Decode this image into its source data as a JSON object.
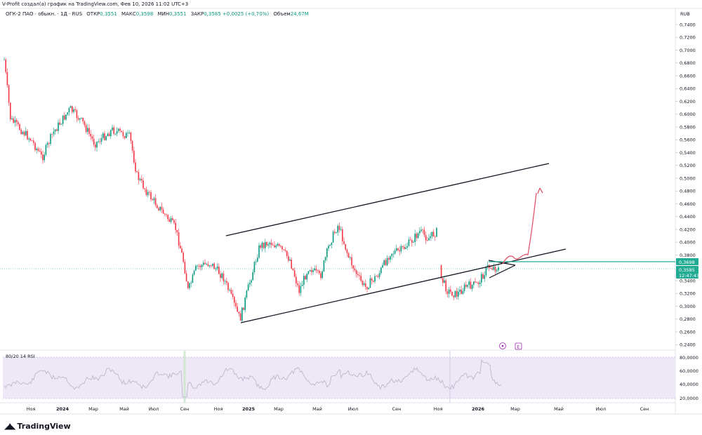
{
  "header": {
    "attribution": "V-Profit создал(а) график на TradingView.com, Фев 10, 2026 11:02 UTC+3"
  },
  "legend": {
    "symbol": "ОГК-2 ПАО · обыкн. · 1Д · RUS",
    "open_label": "ОТКР",
    "open_value": "0,3551",
    "high_label": "МАКС",
    "high_value": "0,3598",
    "low_label": "МИН",
    "low_value": "0,3551",
    "close_label": "ЗАКР",
    "close_value": "0,3585",
    "change": "+0,0025 (+0,70%)",
    "volume_label": "Объем",
    "volume_value": "24,67M"
  },
  "price_axis": {
    "currency": "RUB",
    "ticks": [
      "0,7400",
      "0,7200",
      "0,7000",
      "0,6800",
      "0,6600",
      "0,6400",
      "0,6200",
      "0,6000",
      "0,5800",
      "0,5600",
      "0,5400",
      "0,5200",
      "0,5000",
      "0,4800",
      "0,4600",
      "0,4400",
      "0,4200",
      "0,4000",
      "0,3800",
      "0,3400",
      "0,3200",
      "0,3000",
      "0,2800",
      "0,2600",
      "0,2400"
    ],
    "tag_level": "0,3698",
    "tag_price": "0,3585",
    "tag_timer": "12:47:43"
  },
  "time_axis": {
    "labels": [
      {
        "text": "Ноя",
        "bold": false
      },
      {
        "text": "2024",
        "bold": true
      },
      {
        "text": "Мар",
        "bold": false
      },
      {
        "text": "Май",
        "bold": false
      },
      {
        "text": "Июл",
        "bold": false
      },
      {
        "text": "Сен",
        "bold": false
      },
      {
        "text": "Ноя",
        "bold": false
      },
      {
        "text": "2025",
        "bold": true
      },
      {
        "text": "Мар",
        "bold": false
      },
      {
        "text": "Май",
        "bold": false
      },
      {
        "text": "Июл",
        "bold": false
      },
      {
        "text": "Сен",
        "bold": false
      },
      {
        "text": "Ноя",
        "bold": false
      },
      {
        "text": "2026",
        "bold": true
      },
      {
        "text": "Мар",
        "bold": false
      },
      {
        "text": "Май",
        "bold": false
      },
      {
        "text": "Июл",
        "bold": false
      },
      {
        "text": "Сен",
        "bold": false
      }
    ]
  },
  "rsi": {
    "label": "80/20 14 RSI",
    "ticks": [
      "80,0000",
      "60,0000",
      "40,0000",
      "20,0000"
    ]
  },
  "markers": {
    "dividend_icon": "dividend-icon",
    "earnings_icon": "earnings-icon",
    "earnings_letter": "E"
  },
  "brand": {
    "name": "TradingView",
    "accent": "#089981",
    "tag_color": "#22ab94",
    "arrow_color": "#e0556b",
    "rsi_fill": "#ede7f6"
  }
}
